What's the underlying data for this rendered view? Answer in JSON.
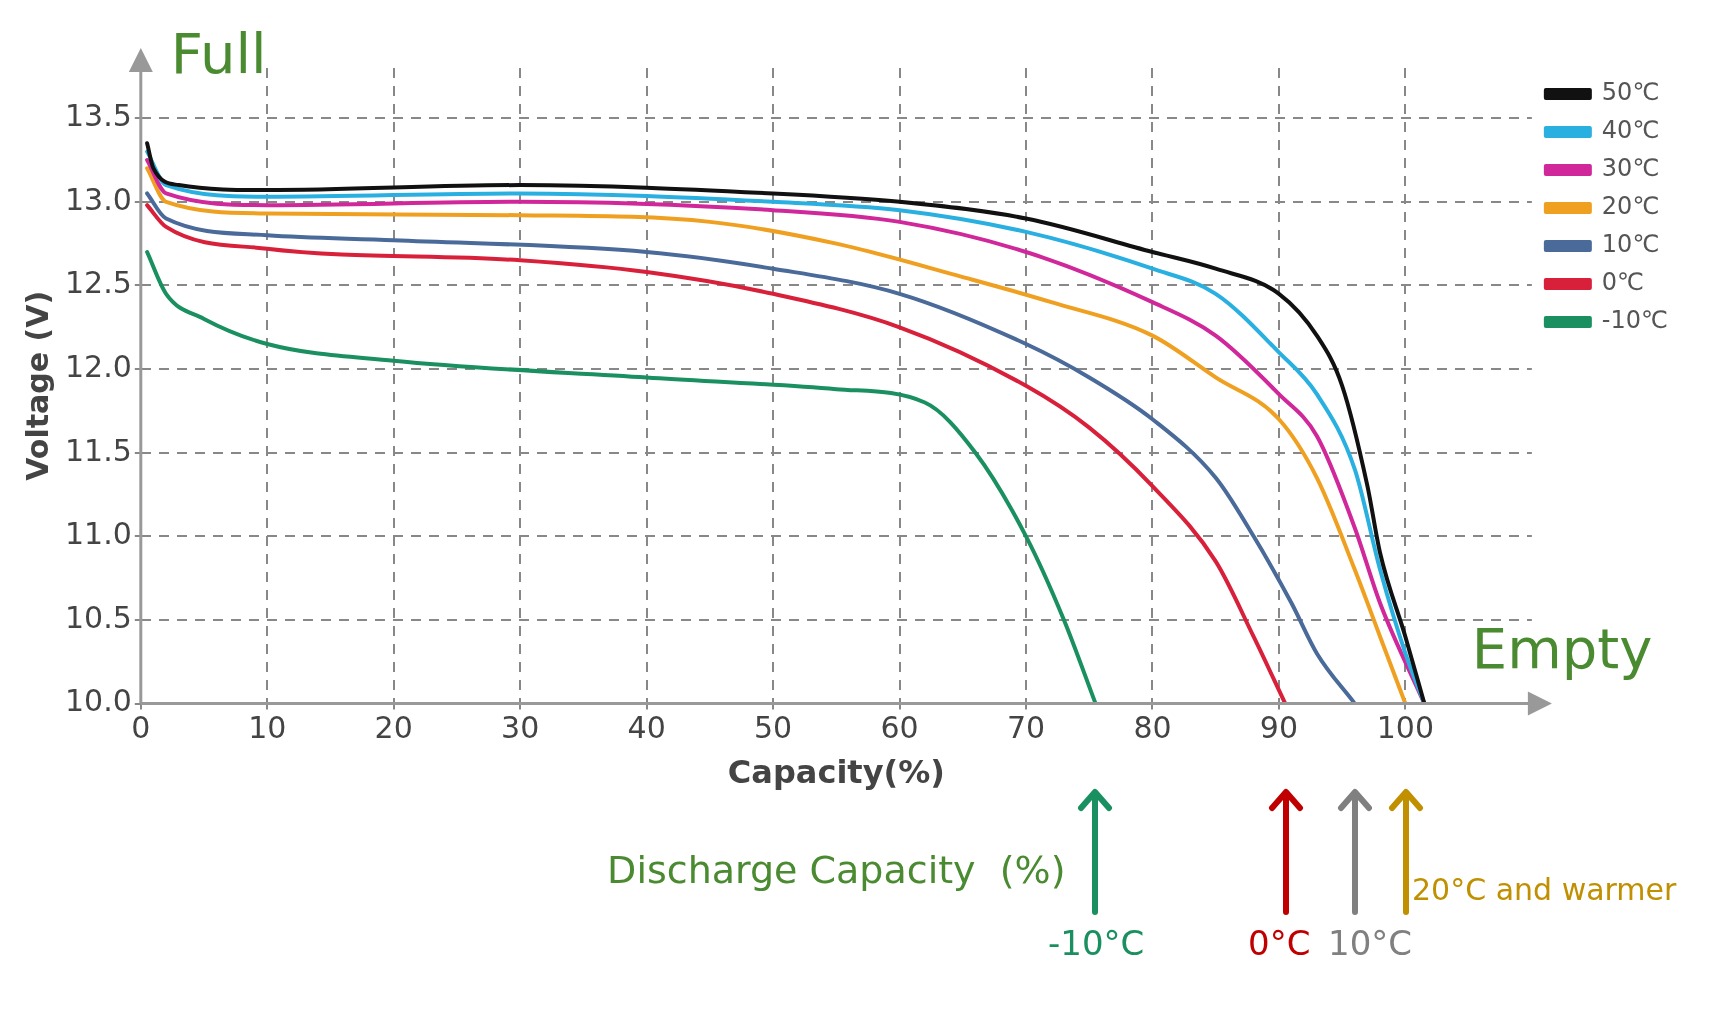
{
  "chart_data": {
    "type": "line",
    "xlabel": "Capacity(%)",
    "ylabel": "Voltage (V)",
    "xlim": [
      0,
      110
    ],
    "ylim": [
      10,
      13.8
    ],
    "xticks": [
      0,
      10,
      20,
      30,
      40,
      50,
      60,
      70,
      80,
      90,
      100
    ],
    "yticks": [
      {
        "value": 10,
        "label": "10.0"
      },
      {
        "value": 10.5,
        "label": "10.5"
      },
      {
        "value": 11,
        "label": "11.0"
      },
      {
        "value": 11.5,
        "label": "11.5"
      },
      {
        "value": 12,
        "label": "12.0"
      },
      {
        "value": 12.5,
        "label": "12.5"
      },
      {
        "value": 13,
        "label": "13.0"
      },
      {
        "value": 13.5,
        "label": "13.5"
      }
    ],
    "grid": true,
    "line_style": "solid",
    "marker": "none",
    "legend": "top right",
    "series": [
      {
        "name": "50℃",
        "color": "#111111",
        "x": [
          0.5,
          1,
          3,
          10,
          30,
          50,
          60,
          70,
          80,
          85,
          90,
          93,
          95,
          97,
          98,
          100,
          101.5
        ],
        "values": [
          13.35,
          13.2,
          13.1,
          13.07,
          13.1,
          13.05,
          13.0,
          12.9,
          12.7,
          12.6,
          12.45,
          12.2,
          11.9,
          11.3,
          10.9,
          10.4,
          10.0
        ]
      },
      {
        "name": "40℃",
        "color": "#2ab0e0",
        "x": [
          0.5,
          2,
          10,
          30,
          50,
          60,
          70,
          80,
          85,
          90,
          93,
          96,
          98,
          100,
          101.5
        ],
        "values": [
          13.3,
          13.1,
          13.03,
          13.05,
          13.0,
          12.95,
          12.82,
          12.6,
          12.45,
          12.1,
          11.85,
          11.4,
          10.8,
          10.3,
          10.0
        ]
      },
      {
        "name": "30℃",
        "color": "#d0289a",
        "x": [
          0.5,
          2,
          10,
          30,
          50,
          60,
          70,
          80,
          85,
          90,
          93,
          96,
          98,
          101.5
        ],
        "values": [
          13.25,
          13.05,
          12.98,
          13.0,
          12.95,
          12.88,
          12.7,
          12.4,
          12.2,
          11.85,
          11.6,
          11.05,
          10.6,
          10.0
        ]
      },
      {
        "name": "20℃",
        "color": "#f0a020",
        "x": [
          0.5,
          2,
          10,
          30,
          45,
          55,
          65,
          72,
          80,
          85,
          90,
          93,
          96,
          98,
          100
        ],
        "values": [
          13.2,
          13.0,
          12.93,
          12.92,
          12.88,
          12.75,
          12.55,
          12.4,
          12.2,
          11.95,
          11.7,
          11.35,
          10.8,
          10.4,
          10.0
        ]
      },
      {
        "name": "10℃",
        "color": "#4a6a9a",
        "x": [
          0.5,
          2,
          10,
          20,
          40,
          50,
          60,
          70,
          75,
          80,
          85,
          88,
          91,
          93,
          96
        ],
        "values": [
          13.05,
          12.9,
          12.8,
          12.77,
          12.7,
          12.6,
          12.45,
          12.15,
          11.95,
          11.7,
          11.35,
          11.0,
          10.6,
          10.3,
          10.0
        ]
      },
      {
        "name": "0℃",
        "color": "#d8203a",
        "x": [
          0.5,
          2,
          10,
          30,
          40,
          50,
          60,
          70,
          75,
          80,
          85,
          88,
          90.5
        ],
        "values": [
          12.98,
          12.85,
          12.72,
          12.65,
          12.58,
          12.45,
          12.25,
          11.9,
          11.65,
          11.3,
          10.85,
          10.4,
          10.0
        ]
      },
      {
        "name": "-10℃",
        "color": "#1a9060",
        "x": [
          0.5,
          2,
          5,
          10,
          20,
          40,
          55,
          62,
          66,
          70,
          73,
          75.5
        ],
        "values": [
          12.7,
          12.45,
          12.3,
          12.15,
          12.05,
          11.95,
          11.88,
          11.8,
          11.5,
          11.0,
          10.5,
          10.0
        ]
      }
    ],
    "annotations": [
      "Full",
      "Empty",
      "Discharge Capacity  (%)",
      "-10°C",
      "0°C",
      "10°C",
      "20°C and warmer"
    ]
  }
}
